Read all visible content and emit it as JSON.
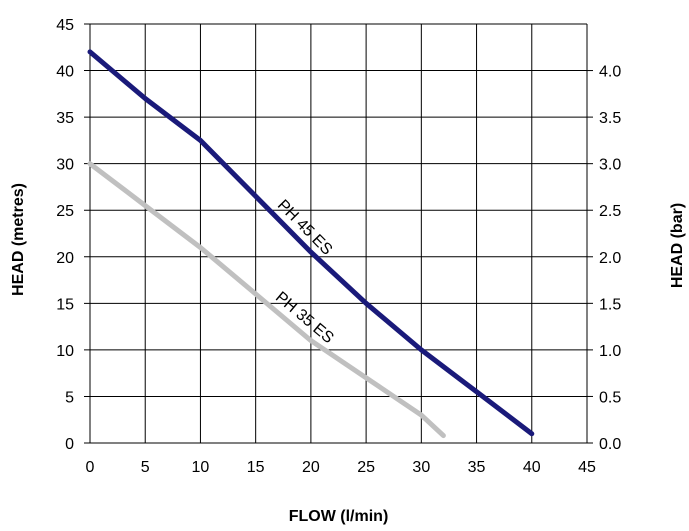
{
  "chart_data": {
    "type": "line",
    "xlabel": "FLOW (l/min)",
    "ylabel": "HEAD (metres)",
    "y2label": "HEAD (bar)",
    "xlim": [
      0,
      45
    ],
    "ylim": [
      0,
      45
    ],
    "y2lim": [
      0,
      4.5
    ],
    "x_ticks": [
      "0",
      "5",
      "10",
      "15",
      "20",
      "25",
      "30",
      "35",
      "40",
      "45"
    ],
    "y_ticks": [
      "0",
      "5",
      "10",
      "15",
      "20",
      "25",
      "30",
      "35",
      "40",
      "45"
    ],
    "y2_ticks": [
      "0.0",
      "0.5",
      "1.0",
      "1.5",
      "2.0",
      "2.5",
      "3.0",
      "3.5",
      "4.0"
    ],
    "grid": true,
    "series": [
      {
        "name": "PH 45 ES",
        "color": "#1a1a7a",
        "points": [
          [
            0,
            42
          ],
          [
            5,
            37
          ],
          [
            10,
            32.5
          ],
          [
            15,
            26.5
          ],
          [
            20,
            20.5
          ],
          [
            25,
            15
          ],
          [
            30,
            10
          ],
          [
            35,
            5.5
          ],
          [
            40,
            1
          ]
        ]
      },
      {
        "name": "PH 35 ES",
        "color": "#c0c0c0",
        "points": [
          [
            0,
            30
          ],
          [
            5,
            25.5
          ],
          [
            10,
            21
          ],
          [
            15,
            16
          ],
          [
            20,
            11
          ],
          [
            25,
            7
          ],
          [
            30,
            3
          ],
          [
            32,
            0.8
          ]
        ]
      }
    ]
  }
}
